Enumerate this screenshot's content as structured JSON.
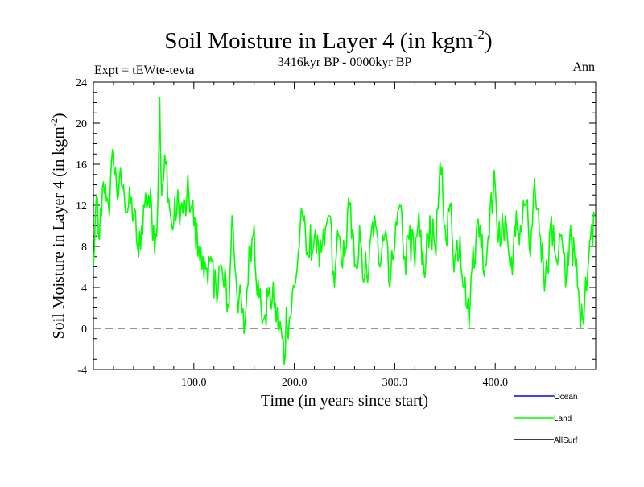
{
  "chart_data": {
    "type": "line",
    "title_main": "Soil Moisture in Layer 4 (in kgm",
    "title_sup": "-2",
    "title_close": ")",
    "subtitle": "3416kyr BP - 0000kyr BP",
    "expt_label": "Expt = tEWte-tevta",
    "season_label": "Ann",
    "xlabel": "Time (in years since start)",
    "ylabel_main": "Soil Moisture in Layer 4 (in kgm",
    "ylabel_sup": "-2",
    "ylabel_close": ")",
    "xlim": [
      0,
      500
    ],
    "ylim": [
      -4,
      24
    ],
    "xticks_labeled": [
      100,
      200,
      300,
      400
    ],
    "xtick_labels": [
      "100.0",
      "200.0",
      "300.0",
      "400.0"
    ],
    "yticks": [
      -4,
      0,
      4,
      8,
      12,
      16,
      20,
      24
    ],
    "ytick_labels": [
      "-4",
      "0",
      "4",
      "8",
      "12",
      "16",
      "20",
      "24"
    ],
    "reference_line_y": 0,
    "legend": [
      {
        "name": "Ocean",
        "color": "#0000ff"
      },
      {
        "name": "Land",
        "color": "#00ff00"
      },
      {
        "name": "AllSurf",
        "color": "#000000"
      }
    ],
    "series": [
      {
        "name": "Land",
        "color": "#00ff00",
        "anchors_x": [
          0,
          3,
          5,
          8,
          12,
          15,
          20,
          25,
          30,
          35,
          40,
          45,
          50,
          55,
          60,
          63,
          66,
          68,
          72,
          78,
          85,
          92,
          95,
          100,
          105,
          110,
          115,
          120,
          125,
          130,
          135,
          138,
          142,
          145,
          150,
          152,
          155,
          160,
          165,
          170,
          175,
          180,
          185,
          188,
          190,
          192,
          195,
          200,
          205,
          210,
          215,
          220,
          225,
          230,
          235,
          240,
          245,
          250,
          255,
          260,
          265,
          270,
          275,
          280,
          285,
          290,
          295,
          300,
          305,
          310,
          315,
          320,
          325,
          330,
          335,
          340,
          346,
          350,
          355,
          360,
          365,
          370,
          374,
          378,
          385,
          390,
          395,
          400,
          405,
          410,
          415,
          420,
          425,
          430,
          435,
          440,
          445,
          450,
          455,
          460,
          465,
          470,
          475,
          480,
          485,
          490,
          495,
          499
        ],
        "anchors_y": [
          6,
          13,
          9,
          11,
          14,
          12,
          16,
          13,
          14,
          12,
          11,
          7,
          12,
          13,
          10,
          9,
          22.5,
          13,
          16,
          10,
          12,
          11,
          13,
          10,
          8,
          5,
          7,
          3,
          6,
          4,
          2,
          11,
          5,
          3,
          -0.5,
          2,
          8,
          10,
          3,
          1,
          4,
          2,
          0,
          -1,
          -3.5,
          2,
          1,
          4,
          8,
          11,
          7,
          9,
          6,
          8,
          11,
          4,
          9,
          7,
          12,
          6,
          10,
          5,
          8,
          11,
          6,
          9,
          4,
          8,
          12,
          7,
          10,
          6,
          9,
          5,
          11,
          8,
          15,
          10,
          12,
          7,
          9,
          5,
          0,
          8,
          10,
          6,
          12,
          14,
          8,
          11,
          6,
          9,
          10,
          12,
          7,
          13,
          9,
          5,
          10,
          7,
          9,
          4,
          10,
          6,
          0,
          5,
          9,
          11
        ]
      }
    ]
  }
}
